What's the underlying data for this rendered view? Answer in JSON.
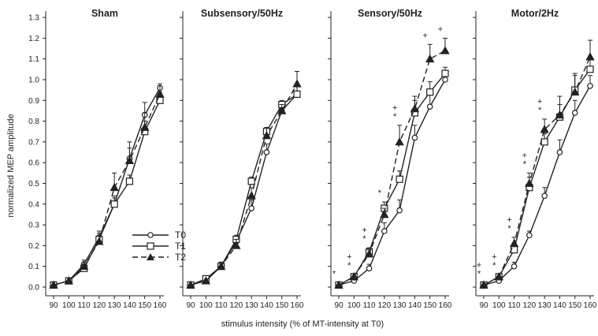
{
  "chart_data": {
    "type": "line",
    "xlabel": "stimulus intensity (% of MT-intensity at T0)",
    "ylabel": "normalized MEP amplitude",
    "x": [
      90,
      100,
      110,
      120,
      130,
      140,
      150,
      160
    ],
    "ylim": [
      0,
      1.3
    ],
    "yticks": [
      "0.0",
      "0.1",
      "0.2",
      "0.3",
      "0.4",
      "0.5",
      "0.6",
      "0.7",
      "0.8",
      "0.9",
      "1.0",
      "1.1",
      "1.2",
      "1.3"
    ],
    "grid": false,
    "legend": {
      "placement": "bottom-right of first panel",
      "entries": [
        {
          "label": "T0",
          "marker": "circle-open",
          "line": "solid"
        },
        {
          "label": "T1",
          "marker": "square-open",
          "line": "solid"
        },
        {
          "label": "T2",
          "marker": "triangle-filled",
          "line": "dashed"
        }
      ]
    },
    "panels": [
      {
        "title": "Sham",
        "series": [
          {
            "name": "T0",
            "values": [
              0.01,
              0.03,
              0.11,
              0.24,
              0.4,
              0.62,
              0.83,
              0.96
            ],
            "err": [
              0.01,
              0.01,
              0.02,
              0.03,
              0.03,
              0.05,
              0.06,
              0.02
            ]
          },
          {
            "name": "T1",
            "values": [
              0.01,
              0.03,
              0.09,
              0.23,
              0.4,
              0.51,
              0.75,
              0.9
            ],
            "err": [
              0.01,
              0.01,
              0.02,
              0.03,
              0.04,
              0.03,
              0.05,
              0.04
            ]
          },
          {
            "name": "T2",
            "values": [
              0.01,
              0.03,
              0.1,
              0.22,
              0.48,
              0.61,
              0.77,
              0.93
            ],
            "err": [
              0.01,
              0.01,
              0.02,
              0.03,
              0.07,
              0.09,
              0.07,
              0.04
            ]
          }
        ],
        "significance": []
      },
      {
        "title": "Subsensory/50Hz",
        "series": [
          {
            "name": "T0",
            "values": [
              0.01,
              0.03,
              0.1,
              0.22,
              0.38,
              0.65,
              0.85,
              0.93
            ],
            "err": [
              0.01,
              0.01,
              0.02,
              0.02,
              0.04,
              0.04,
              0.03,
              0.04
            ]
          },
          {
            "name": "T1",
            "values": [
              0.01,
              0.04,
              0.1,
              0.23,
              0.51,
              0.75,
              0.88,
              0.93
            ],
            "err": [
              0.01,
              0.01,
              0.02,
              0.02,
              0.02,
              0.02,
              0.02,
              0.04
            ]
          },
          {
            "name": "T2",
            "values": [
              0.01,
              0.03,
              0.1,
              0.2,
              0.44,
              0.73,
              0.85,
              0.98
            ],
            "err": [
              0.01,
              0.01,
              0.02,
              0.03,
              0.04,
              0.04,
              0.03,
              0.06
            ]
          }
        ],
        "significance": []
      },
      {
        "title": "Sensory/50Hz",
        "series": [
          {
            "name": "T0",
            "values": [
              0.01,
              0.03,
              0.09,
              0.27,
              0.37,
              0.72,
              0.87,
              1.0
            ],
            "err": [
              0.01,
              0.01,
              0.02,
              0.04,
              0.05,
              0.06,
              0.06,
              0.04
            ]
          },
          {
            "name": "T1",
            "values": [
              0.01,
              0.05,
              0.17,
              0.38,
              0.52,
              0.84,
              0.94,
              1.03
            ],
            "err": [
              0.01,
              0.01,
              0.02,
              0.03,
              0.04,
              0.06,
              0.05,
              0.03
            ]
          },
          {
            "name": "T2",
            "values": [
              0.01,
              0.05,
              0.16,
              0.35,
              0.7,
              0.86,
              1.1,
              1.14
            ],
            "err": [
              0.01,
              0.01,
              0.02,
              0.03,
              0.08,
              0.06,
              0.07,
              0.06
            ]
          }
        ],
        "significance": [
          {
            "x": 90,
            "marks": [
              "*"
            ]
          },
          {
            "x": 100,
            "marks": [
              "+",
              "*"
            ]
          },
          {
            "x": 110,
            "marks": [
              "+",
              "*"
            ]
          },
          {
            "x": 120,
            "marks": [
              "*"
            ]
          },
          {
            "x": 130,
            "marks": [
              "+",
              "*"
            ]
          },
          {
            "x": 150,
            "marks": [
              "+"
            ]
          },
          {
            "x": 160,
            "marks": [
              "+"
            ]
          }
        ]
      },
      {
        "title": "Motor/2Hz",
        "series": [
          {
            "name": "T0",
            "values": [
              0.01,
              0.03,
              0.1,
              0.25,
              0.44,
              0.65,
              0.84,
              0.97
            ],
            "err": [
              0.01,
              0.01,
              0.02,
              0.02,
              0.04,
              0.06,
              0.06,
              0.05
            ]
          },
          {
            "name": "T1",
            "values": [
              0.01,
              0.05,
              0.18,
              0.48,
              0.7,
              0.82,
              0.95,
              1.05
            ],
            "err": [
              0.01,
              0.01,
              0.03,
              0.05,
              0.04,
              0.1,
              0.08,
              0.05
            ]
          },
          {
            "name": "T2",
            "values": [
              0.01,
              0.05,
              0.21,
              0.5,
              0.76,
              0.83,
              0.94,
              1.11
            ],
            "err": [
              0.01,
              0.01,
              0.03,
              0.05,
              0.05,
              0.05,
              0.08,
              0.08
            ]
          }
        ],
        "significance": [
          {
            "x": 90,
            "marks": [
              "+",
              "*"
            ]
          },
          {
            "x": 100,
            "marks": [
              "+",
              "*"
            ]
          },
          {
            "x": 110,
            "marks": [
              "+",
              "*"
            ]
          },
          {
            "x": 120,
            "marks": [
              "+",
              "*"
            ]
          },
          {
            "x": 130,
            "marks": [
              "+",
              "*"
            ]
          }
        ]
      }
    ]
  }
}
